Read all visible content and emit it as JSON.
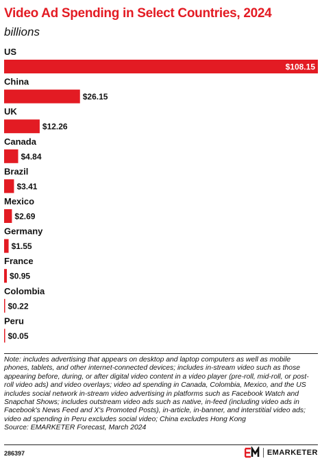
{
  "header": {
    "title": "Video Ad Spending in Select Countries, 2024",
    "subtitle": "billions"
  },
  "chart_data": {
    "type": "bar",
    "orientation": "horizontal",
    "title": "Video Ad Spending in Select Countries, 2024",
    "subtitle": "billions",
    "categories": [
      "US",
      "China",
      "UK",
      "Canada",
      "Brazil",
      "Mexico",
      "Germany",
      "France",
      "Colombia",
      "Peru"
    ],
    "values": [
      108.15,
      26.15,
      12.26,
      4.84,
      3.41,
      2.69,
      1.55,
      0.95,
      0.22,
      0.05
    ],
    "value_labels": [
      "$108.15",
      "$26.15",
      "$12.26",
      "$4.84",
      "$3.41",
      "$2.69",
      "$1.55",
      "$0.95",
      "$0.22",
      "$0.05"
    ],
    "xlim": [
      0,
      108.15
    ],
    "grid": false,
    "bar_color": "#e31b23"
  },
  "footer": {
    "note": "Note: includes advertising that appears on desktop and laptop computers as well as mobile phones, tablets, and other internet-connected devices; includes in-stream video such as those appearing before, during, or after digital video content in a video player (pre-roll, mid-roll, or post-roll video ads) and video overlays; video ad spending in Canada, Colombia, Mexico, and the US includes social network in-stream video advertising in platforms such as Facebook Watch and Snapchat Shows; includes outstream video ads such as native, in-feed (including video ads in Facebook's News Feed and X's Promoted Posts), in-article, in-banner, and interstitial video ads; video ad spending in Peru excludes social video; China excludes Hong Kong",
    "source": "Source: EMARKETER Forecast, March 2024",
    "chart_id": "286397",
    "brand": "EMARKETER",
    "brand_color": "#e31b23"
  }
}
